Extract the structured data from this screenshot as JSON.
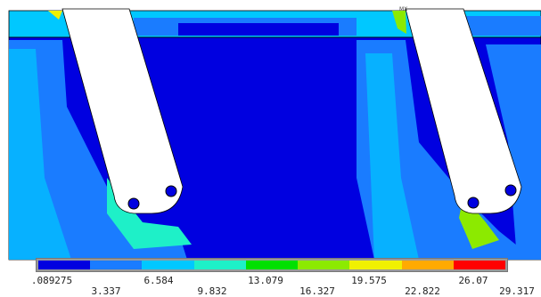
{
  "colors": {
    "band_colors": [
      "#0000e0",
      "#1a7cff",
      "#00c8ff",
      "#1ef0c8",
      "#00e000",
      "#8cea00",
      "#f0f000",
      "#ffaa00",
      "#ff0000"
    ],
    "background": "#ffffff",
    "outline": "#000000"
  },
  "tag": "MX",
  "legend": {
    "labels_top": [
      ".089275",
      "6.584",
      "13.079",
      "19.575",
      "26.07"
    ],
    "labels_bottom": [
      "3.337",
      "9.832",
      "16.327",
      "22.822",
      "29.317"
    ]
  }
}
